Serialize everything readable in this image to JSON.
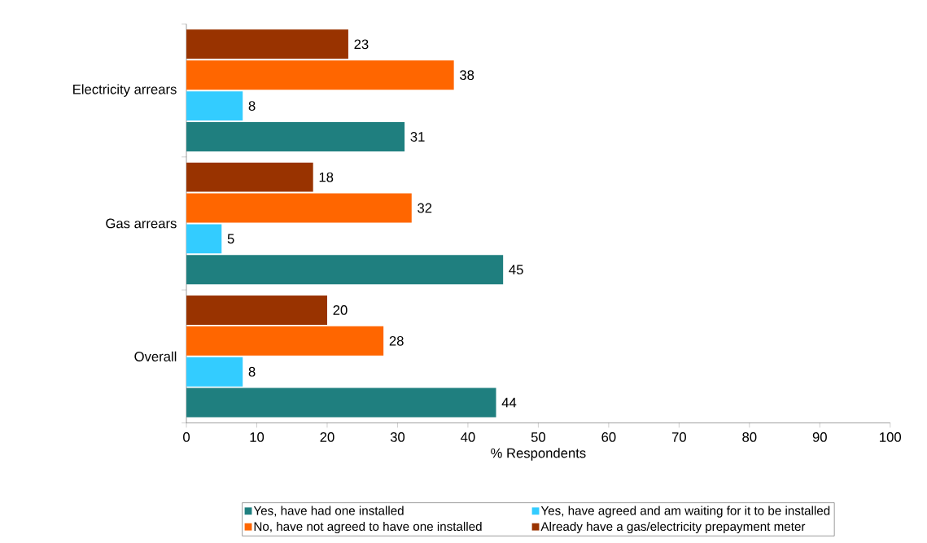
{
  "chart_data": {
    "type": "bar",
    "orientation": "horizontal",
    "categories": [
      "Electricity arrears",
      "Gas arrears",
      "Overall"
    ],
    "series": [
      {
        "name": "Yes, have had one installed",
        "color": "#1f7f7f",
        "values": [
          31,
          45,
          44
        ]
      },
      {
        "name": "Yes, have agreed and am waiting for it to be installed",
        "color": "#33ccff",
        "values": [
          8,
          5,
          8
        ]
      },
      {
        "name": "No, have not agreed to have one installed",
        "color": "#ff6600",
        "values": [
          38,
          32,
          28
        ]
      },
      {
        "name": "Already have a gas/electricity prepayment meter",
        "color": "#993300",
        "values": [
          23,
          18,
          20
        ]
      }
    ],
    "xlabel": "% Respondents",
    "xlim": [
      0,
      100
    ],
    "xticks": [
      0,
      10,
      20,
      30,
      40,
      50,
      60,
      70,
      80,
      90,
      100
    ],
    "data_labels": true,
    "grid": false,
    "legend": "bottom"
  }
}
